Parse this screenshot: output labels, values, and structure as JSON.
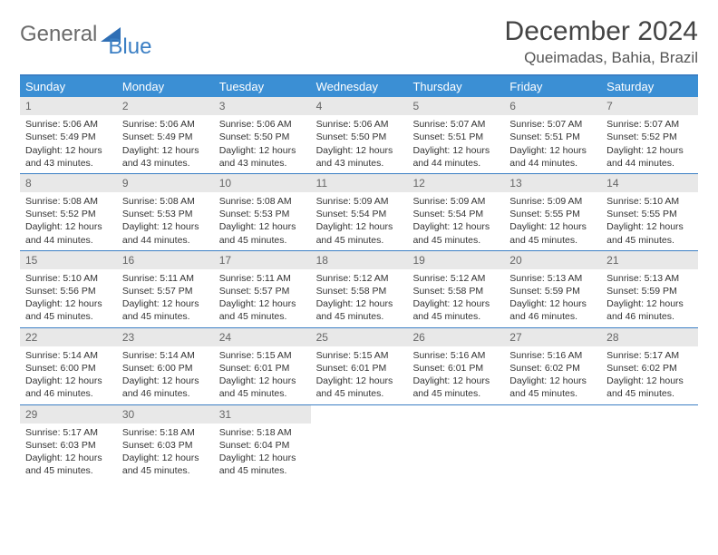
{
  "logo": {
    "text1": "General",
    "text2": "Blue"
  },
  "title": "December 2024",
  "location": "Queimadas, Bahia, Brazil",
  "day_headers": [
    "Sunday",
    "Monday",
    "Tuesday",
    "Wednesday",
    "Thursday",
    "Friday",
    "Saturday"
  ],
  "header_bg": "#3b8fd4",
  "border_color": "#3b7fc4",
  "daynum_bg": "#e8e8e8",
  "weeks": [
    [
      {
        "n": "1",
        "sr": "5:06 AM",
        "ss": "5:49 PM",
        "dl": "12 hours and 43 minutes."
      },
      {
        "n": "2",
        "sr": "5:06 AM",
        "ss": "5:49 PM",
        "dl": "12 hours and 43 minutes."
      },
      {
        "n": "3",
        "sr": "5:06 AM",
        "ss": "5:50 PM",
        "dl": "12 hours and 43 minutes."
      },
      {
        "n": "4",
        "sr": "5:06 AM",
        "ss": "5:50 PM",
        "dl": "12 hours and 43 minutes."
      },
      {
        "n": "5",
        "sr": "5:07 AM",
        "ss": "5:51 PM",
        "dl": "12 hours and 44 minutes."
      },
      {
        "n": "6",
        "sr": "5:07 AM",
        "ss": "5:51 PM",
        "dl": "12 hours and 44 minutes."
      },
      {
        "n": "7",
        "sr": "5:07 AM",
        "ss": "5:52 PM",
        "dl": "12 hours and 44 minutes."
      }
    ],
    [
      {
        "n": "8",
        "sr": "5:08 AM",
        "ss": "5:52 PM",
        "dl": "12 hours and 44 minutes."
      },
      {
        "n": "9",
        "sr": "5:08 AM",
        "ss": "5:53 PM",
        "dl": "12 hours and 44 minutes."
      },
      {
        "n": "10",
        "sr": "5:08 AM",
        "ss": "5:53 PM",
        "dl": "12 hours and 45 minutes."
      },
      {
        "n": "11",
        "sr": "5:09 AM",
        "ss": "5:54 PM",
        "dl": "12 hours and 45 minutes."
      },
      {
        "n": "12",
        "sr": "5:09 AM",
        "ss": "5:54 PM",
        "dl": "12 hours and 45 minutes."
      },
      {
        "n": "13",
        "sr": "5:09 AM",
        "ss": "5:55 PM",
        "dl": "12 hours and 45 minutes."
      },
      {
        "n": "14",
        "sr": "5:10 AM",
        "ss": "5:55 PM",
        "dl": "12 hours and 45 minutes."
      }
    ],
    [
      {
        "n": "15",
        "sr": "5:10 AM",
        "ss": "5:56 PM",
        "dl": "12 hours and 45 minutes."
      },
      {
        "n": "16",
        "sr": "5:11 AM",
        "ss": "5:57 PM",
        "dl": "12 hours and 45 minutes."
      },
      {
        "n": "17",
        "sr": "5:11 AM",
        "ss": "5:57 PM",
        "dl": "12 hours and 45 minutes."
      },
      {
        "n": "18",
        "sr": "5:12 AM",
        "ss": "5:58 PM",
        "dl": "12 hours and 45 minutes."
      },
      {
        "n": "19",
        "sr": "5:12 AM",
        "ss": "5:58 PM",
        "dl": "12 hours and 45 minutes."
      },
      {
        "n": "20",
        "sr": "5:13 AM",
        "ss": "5:59 PM",
        "dl": "12 hours and 46 minutes."
      },
      {
        "n": "21",
        "sr": "5:13 AM",
        "ss": "5:59 PM",
        "dl": "12 hours and 46 minutes."
      }
    ],
    [
      {
        "n": "22",
        "sr": "5:14 AM",
        "ss": "6:00 PM",
        "dl": "12 hours and 46 minutes."
      },
      {
        "n": "23",
        "sr": "5:14 AM",
        "ss": "6:00 PM",
        "dl": "12 hours and 46 minutes."
      },
      {
        "n": "24",
        "sr": "5:15 AM",
        "ss": "6:01 PM",
        "dl": "12 hours and 45 minutes."
      },
      {
        "n": "25",
        "sr": "5:15 AM",
        "ss": "6:01 PM",
        "dl": "12 hours and 45 minutes."
      },
      {
        "n": "26",
        "sr": "5:16 AM",
        "ss": "6:01 PM",
        "dl": "12 hours and 45 minutes."
      },
      {
        "n": "27",
        "sr": "5:16 AM",
        "ss": "6:02 PM",
        "dl": "12 hours and 45 minutes."
      },
      {
        "n": "28",
        "sr": "5:17 AM",
        "ss": "6:02 PM",
        "dl": "12 hours and 45 minutes."
      }
    ],
    [
      {
        "n": "29",
        "sr": "5:17 AM",
        "ss": "6:03 PM",
        "dl": "12 hours and 45 minutes."
      },
      {
        "n": "30",
        "sr": "5:18 AM",
        "ss": "6:03 PM",
        "dl": "12 hours and 45 minutes."
      },
      {
        "n": "31",
        "sr": "5:18 AM",
        "ss": "6:04 PM",
        "dl": "12 hours and 45 minutes."
      },
      null,
      null,
      null,
      null
    ]
  ],
  "labels": {
    "sunrise": "Sunrise:",
    "sunset": "Sunset:",
    "daylight": "Daylight:"
  }
}
